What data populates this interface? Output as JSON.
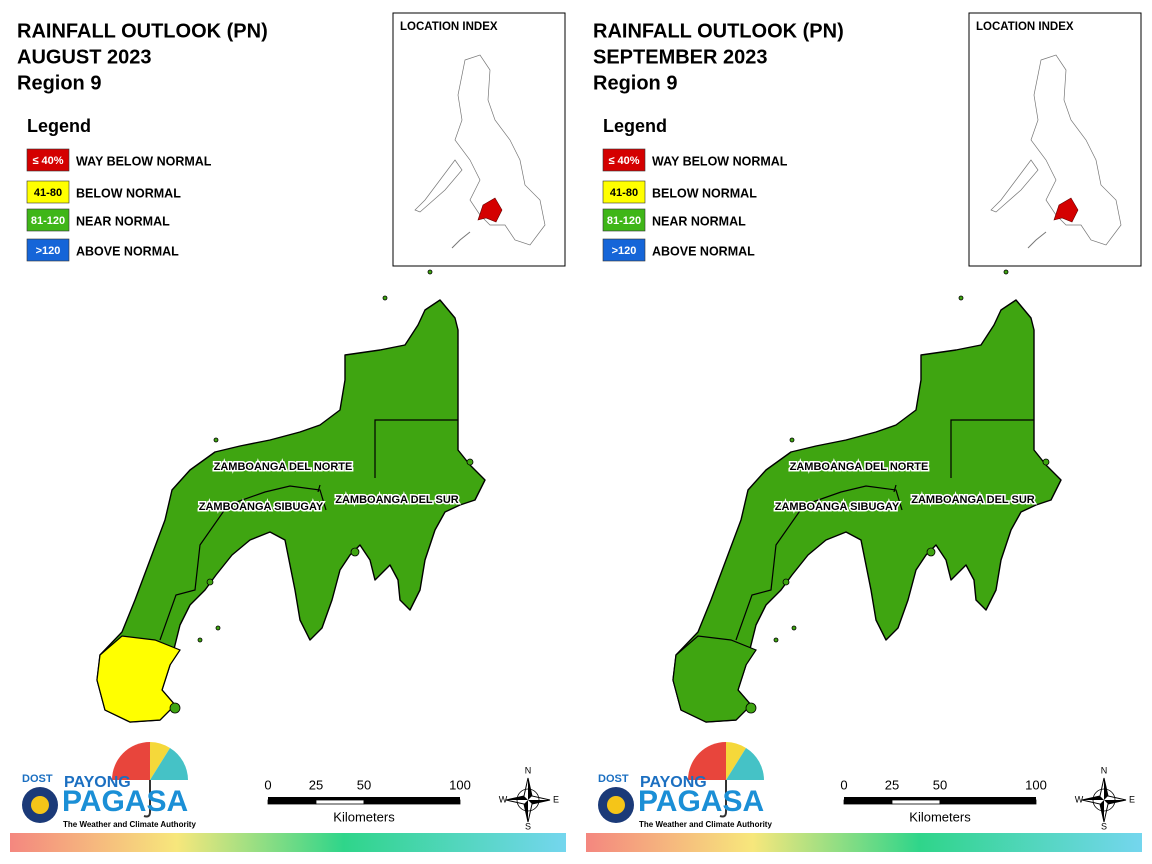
{
  "panels": [
    {
      "title": [
        "RAINFALL OUTLOOK (PN)",
        "AUGUST 2023",
        "Region 9"
      ],
      "legend_title": "Legend",
      "legend": [
        {
          "code": "≤ 40%",
          "label": "WAY BELOW NORMAL",
          "color": "#d40000"
        },
        {
          "code": "41-80",
          "label": "BELOW NORMAL",
          "color": "#ffff00"
        },
        {
          "code": "81-120",
          "label": "NEAR NORMAL",
          "color": "#3fb618"
        },
        {
          "code": ">120",
          "label": "ABOVE NORMAL",
          "color": "#1565d8"
        }
      ],
      "location_index": "LOCATION INDEX",
      "provinces": [
        "ZAMBOANGA DEL NORTE",
        "ZAMBOANGA SIBUGAY",
        "ZAMBOANGA DEL SUR"
      ],
      "scale": {
        "ticks": [
          0,
          25,
          50,
          100
        ],
        "unit": "Kilometers"
      },
      "compass": [
        "N",
        "E",
        "S",
        "W"
      ],
      "logo": {
        "dost": "DOST",
        "payong": "PAYONG",
        "pagasa": "PAGASA",
        "tagline": "The Weather and Climate Authority"
      }
    },
    {
      "title": [
        "RAINFALL OUTLOOK (PN)",
        "SEPTEMBER 2023",
        "Region 9"
      ],
      "legend_title": "Legend",
      "legend": [
        {
          "code": "≤ 40%",
          "label": "WAY BELOW NORMAL",
          "color": "#d40000"
        },
        {
          "code": "41-80",
          "label": "BELOW NORMAL",
          "color": "#ffff00"
        },
        {
          "code": "81-120",
          "label": "NEAR NORMAL",
          "color": "#3fb618"
        },
        {
          "code": ">120",
          "label": "ABOVE NORMAL",
          "color": "#1565d8"
        }
      ],
      "location_index": "LOCATION INDEX",
      "provinces": [
        "ZAMBOANGA DEL NORTE",
        "ZAMBOANGA SIBUGAY",
        "ZAMBOANGA DEL SUR"
      ],
      "scale": {
        "ticks": [
          0,
          25,
          50,
          100
        ],
        "unit": "Kilometers"
      },
      "compass": [
        "N",
        "E",
        "S",
        "W"
      ],
      "logo": {
        "dost": "DOST",
        "payong": "PAYONG",
        "pagasa": "PAGASA",
        "tagline": "The Weather and Climate Authority"
      }
    }
  ]
}
